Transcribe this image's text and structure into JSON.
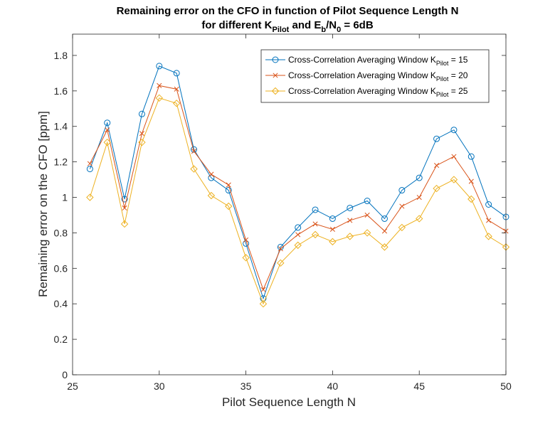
{
  "chart_data": {
    "type": "line",
    "title_line1": "Remaining error on the CFO in function of Pilot Sequence Length N",
    "title_line2": {
      "t1": "for different K",
      "s1": "Pilot",
      "t2": " and E",
      "s2": "b",
      "t3": "/N",
      "s3": "0",
      "t4": " = 6dB"
    },
    "xlabel": "Pilot Sequence Length N",
    "ylabel": "Remaining error on the CFO [ppm]",
    "xlim": [
      25,
      50
    ],
    "ylim": [
      0,
      1.92
    ],
    "xticks": [
      25,
      30,
      35,
      40,
      45,
      50
    ],
    "yticks": [
      0,
      0.2,
      0.4,
      0.6,
      0.8,
      1,
      1.2,
      1.4,
      1.6,
      1.8
    ],
    "grid": false,
    "legend_position": "top-right",
    "x": [
      26,
      27,
      28,
      29,
      30,
      31,
      32,
      33,
      34,
      35,
      36,
      37,
      38,
      39,
      40,
      41,
      42,
      43,
      44,
      45,
      46,
      47,
      48,
      49,
      50
    ],
    "series": [
      {
        "legend_main": "Cross-Correlation Averaging Window K",
        "legend_sub": "Pilot",
        "legend_tail": " = 15",
        "color": "#0072BD",
        "marker": "circle",
        "values": [
          1.16,
          1.42,
          0.99,
          1.47,
          1.74,
          1.7,
          1.27,
          1.11,
          1.04,
          0.74,
          0.43,
          0.72,
          0.83,
          0.93,
          0.88,
          0.94,
          0.98,
          0.88,
          1.04,
          1.11,
          1.33,
          1.38,
          1.23,
          0.96,
          0.89
        ]
      },
      {
        "legend_main": "Cross-Correlation Averaging Window K",
        "legend_sub": "Pilot",
        "legend_tail": " = 20",
        "color": "#D95319",
        "marker": "x",
        "values": [
          1.19,
          1.38,
          0.94,
          1.36,
          1.63,
          1.61,
          1.26,
          1.13,
          1.07,
          0.76,
          0.48,
          0.71,
          0.79,
          0.85,
          0.82,
          0.87,
          0.9,
          0.81,
          0.95,
          1.0,
          1.18,
          1.23,
          1.09,
          0.87,
          0.81
        ]
      },
      {
        "legend_main": "Cross-Correlation Averaging Window K",
        "legend_sub": "Pilot",
        "legend_tail": " = 25",
        "color": "#EDB120",
        "marker": "diamond",
        "values": [
          1.0,
          1.31,
          0.85,
          1.31,
          1.56,
          1.53,
          1.16,
          1.01,
          0.95,
          0.66,
          0.4,
          0.63,
          0.73,
          0.79,
          0.75,
          0.78,
          0.8,
          0.72,
          0.83,
          0.88,
          1.05,
          1.1,
          0.99,
          0.78,
          0.72
        ]
      }
    ]
  }
}
